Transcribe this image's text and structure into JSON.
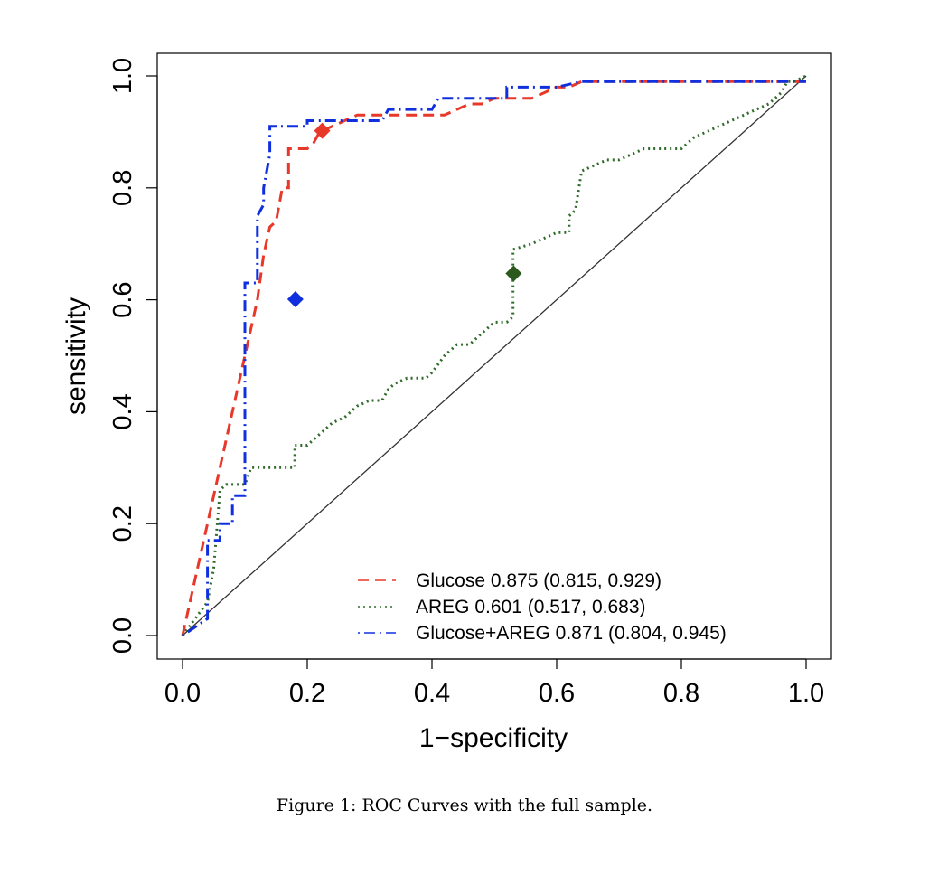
{
  "caption": "Figure 1: ROC Curves with the full sample.",
  "chart_data": {
    "type": "line",
    "title": "",
    "xlabel": "1−specificity",
    "ylabel": "sensitivity",
    "xlim": [
      0,
      1
    ],
    "ylim": [
      0,
      1
    ],
    "xticks": [
      "0.0",
      "0.2",
      "0.4",
      "0.6",
      "0.8",
      "1.0"
    ],
    "yticks": [
      "0.0",
      "0.2",
      "0.4",
      "0.6",
      "0.8",
      "1.0"
    ],
    "grid": false,
    "legend_position": "bottom-right",
    "reference_line": {
      "x": [
        0,
        1
      ],
      "y": [
        0,
        1
      ],
      "color": "#333333"
    },
    "series": [
      {
        "name": "Glucose 0.875 (0.815, 0.929)",
        "color": "#e8382a",
        "dash": "dashed",
        "x": [
          0,
          0.02,
          0.04,
          0.06,
          0.08,
          0.1,
          0.12,
          0.13,
          0.14,
          0.15,
          0.16,
          0.17,
          0.17,
          0.18,
          0.19,
          0.2,
          0.21,
          0.22,
          0.24,
          0.26,
          0.28,
          0.3,
          0.32,
          0.34,
          0.36,
          0.38,
          0.4,
          0.42,
          0.44,
          0.46,
          0.48,
          0.5,
          0.52,
          0.54,
          0.56,
          0.58,
          0.6,
          0.62,
          0.64,
          0.66,
          0.7,
          0.75,
          0.8,
          0.85,
          0.9,
          0.95,
          1.0
        ],
        "y": [
          0,
          0.1,
          0.2,
          0.3,
          0.4,
          0.5,
          0.6,
          0.68,
          0.73,
          0.74,
          0.8,
          0.8,
          0.87,
          0.87,
          0.87,
          0.87,
          0.88,
          0.9,
          0.91,
          0.92,
          0.93,
          0.93,
          0.93,
          0.93,
          0.93,
          0.93,
          0.93,
          0.93,
          0.94,
          0.95,
          0.95,
          0.96,
          0.96,
          0.96,
          0.96,
          0.97,
          0.98,
          0.98,
          0.99,
          0.99,
          0.99,
          0.99,
          0.99,
          0.99,
          0.99,
          0.99,
          0.99
        ]
      },
      {
        "name": "AREG 0.601 (0.517, 0.683)",
        "color": "#2f6b2a",
        "dash": "dotted",
        "x": [
          0,
          0.02,
          0.04,
          0.05,
          0.06,
          0.07,
          0.09,
          0.1,
          0.11,
          0.14,
          0.18,
          0.18,
          0.2,
          0.22,
          0.24,
          0.26,
          0.28,
          0.3,
          0.32,
          0.33,
          0.34,
          0.36,
          0.38,
          0.39,
          0.4,
          0.42,
          0.44,
          0.46,
          0.48,
          0.5,
          0.52,
          0.53,
          0.53,
          0.56,
          0.58,
          0.6,
          0.62,
          0.62,
          0.63,
          0.64,
          0.66,
          0.68,
          0.7,
          0.72,
          0.74,
          0.76,
          0.78,
          0.8,
          0.82,
          0.84,
          0.86,
          0.88,
          0.9,
          0.92,
          0.94,
          0.96,
          0.97,
          0.98,
          1.0
        ],
        "y": [
          0,
          0.03,
          0.06,
          0.12,
          0.26,
          0.27,
          0.27,
          0.27,
          0.3,
          0.3,
          0.3,
          0.34,
          0.34,
          0.36,
          0.38,
          0.39,
          0.41,
          0.42,
          0.42,
          0.44,
          0.45,
          0.46,
          0.46,
          0.46,
          0.47,
          0.5,
          0.52,
          0.52,
          0.54,
          0.56,
          0.56,
          0.57,
          0.69,
          0.7,
          0.71,
          0.72,
          0.72,
          0.75,
          0.76,
          0.83,
          0.84,
          0.85,
          0.85,
          0.86,
          0.87,
          0.87,
          0.87,
          0.87,
          0.89,
          0.9,
          0.91,
          0.92,
          0.93,
          0.94,
          0.95,
          0.97,
          0.99,
          0.99,
          1.0
        ]
      },
      {
        "name": "Glucose+AREG 0.871 (0.804, 0.945)",
        "color": "#1030e0",
        "dash": "dotdash",
        "x": [
          0,
          0.04,
          0.04,
          0.04,
          0.06,
          0.06,
          0.08,
          0.08,
          0.1,
          0.1,
          0.1,
          0.12,
          0.12,
          0.13,
          0.13,
          0.14,
          0.14,
          0.16,
          0.18,
          0.2,
          0.2,
          0.22,
          0.24,
          0.26,
          0.28,
          0.3,
          0.32,
          0.33,
          0.34,
          0.38,
          0.4,
          0.41,
          0.44,
          0.48,
          0.52,
          0.52,
          0.54,
          0.56,
          0.6,
          0.64,
          0.7,
          0.8,
          0.9,
          0.95,
          1.0
        ],
        "y": [
          0,
          0.03,
          0.15,
          0.17,
          0.17,
          0.2,
          0.2,
          0.25,
          0.25,
          0.3,
          0.63,
          0.63,
          0.75,
          0.77,
          0.8,
          0.86,
          0.91,
          0.91,
          0.91,
          0.91,
          0.92,
          0.92,
          0.92,
          0.92,
          0.92,
          0.92,
          0.92,
          0.94,
          0.94,
          0.94,
          0.94,
          0.96,
          0.96,
          0.96,
          0.96,
          0.98,
          0.98,
          0.98,
          0.98,
          0.99,
          0.99,
          0.99,
          0.99,
          0.99,
          0.99
        ]
      }
    ],
    "markers": [
      {
        "series": "Glucose 0.875 (0.815, 0.929)",
        "x": 0.224,
        "y": 0.902,
        "shape": "diamond",
        "color": "#e8382a"
      },
      {
        "series": "AREG 0.601 (0.517, 0.683)",
        "x": 0.531,
        "y": 0.647,
        "shape": "diamond",
        "color": "#2c5a1e"
      },
      {
        "series": "Glucose+AREG 0.871 (0.804, 0.945)",
        "x": 0.181,
        "y": 0.601,
        "shape": "diamond",
        "color": "#1030e0"
      }
    ]
  }
}
